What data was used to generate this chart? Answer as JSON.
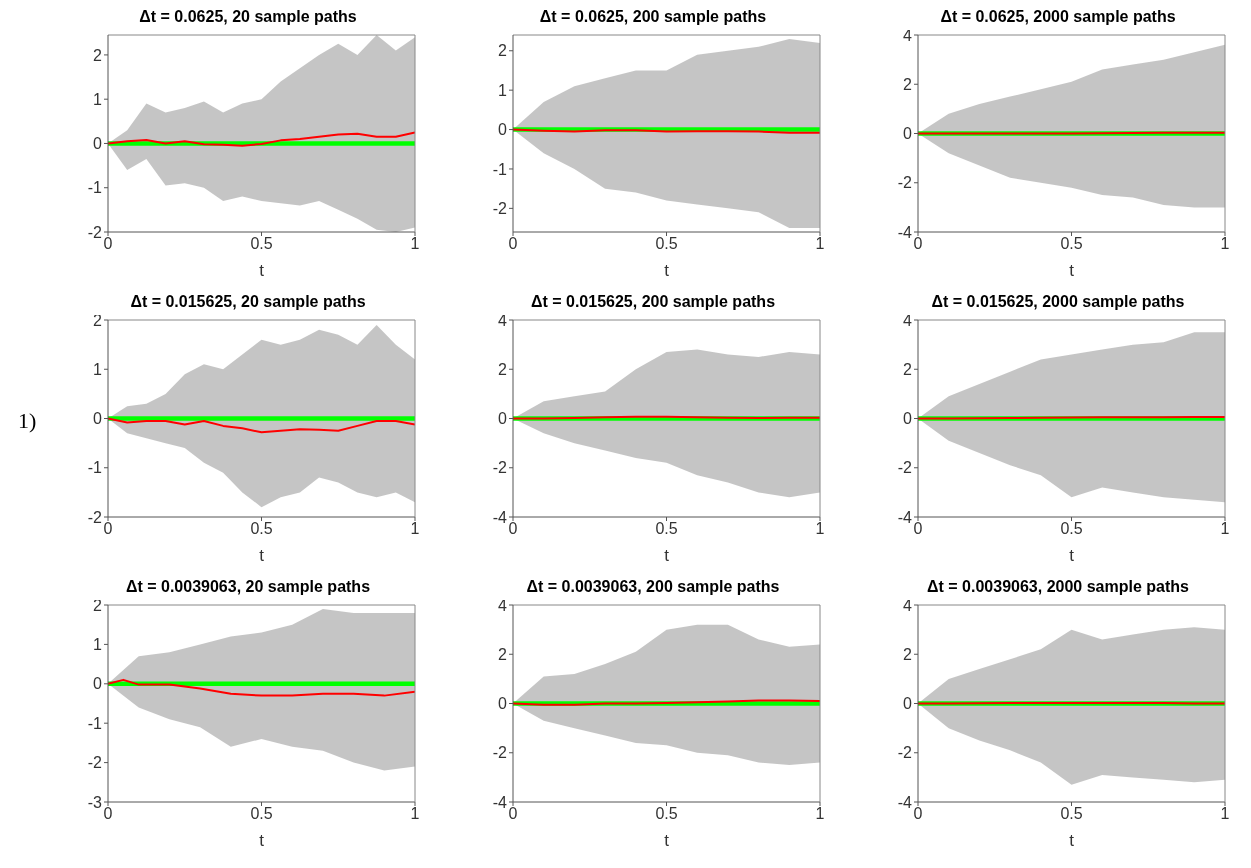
{
  "chart_data": [
    {
      "type": "line",
      "title": "Δt = 0.0625, 20 sample paths",
      "xlabel": "t",
      "xlim": [
        0,
        1
      ],
      "xticks": [
        0,
        0.5,
        1
      ],
      "ylim": [
        -2,
        2.45
      ],
      "yticks": [
        -2,
        -1,
        0,
        1,
        2
      ],
      "series": [
        {
          "color": "#00ff00",
          "x": [
            0,
            0.0625,
            0.125,
            0.1875,
            0.25,
            0.3125,
            0.375,
            0.4375,
            0.5,
            0.5625,
            0.625,
            0.6875,
            0.75,
            0.8125,
            0.875,
            0.9375,
            1
          ],
          "values": [
            0,
            0,
            0,
            0,
            0,
            0,
            0,
            0,
            0,
            0,
            0,
            0,
            0,
            0,
            0,
            0,
            0
          ],
          "lower": [
            0,
            -0.6,
            -0.35,
            -0.95,
            -0.9,
            -1.0,
            -1.3,
            -1.2,
            -1.3,
            -1.35,
            -1.4,
            -1.3,
            -1.5,
            -1.7,
            -1.95,
            -2.0,
            -1.9
          ],
          "upper": [
            0,
            0.3,
            0.9,
            0.7,
            0.8,
            0.95,
            0.7,
            0.9,
            1.0,
            1.4,
            1.7,
            2.0,
            2.25,
            2.0,
            2.45,
            2.1,
            2.4
          ]
        },
        {
          "color": "#ff0000",
          "x": [
            0,
            0.0625,
            0.125,
            0.1875,
            0.25,
            0.3125,
            0.375,
            0.4375,
            0.5,
            0.5625,
            0.625,
            0.6875,
            0.75,
            0.8125,
            0.875,
            0.9375,
            1
          ],
          "values": [
            0,
            0.05,
            0.08,
            0.0,
            0.05,
            -0.02,
            -0.03,
            -0.05,
            -0.01,
            0.07,
            0.1,
            0.15,
            0.2,
            0.22,
            0.15,
            0.15,
            0.25
          ]
        }
      ]
    },
    {
      "type": "line",
      "title": "Δt = 0.0625, 200 sample paths",
      "xlabel": "t",
      "xlim": [
        0,
        1
      ],
      "xticks": [
        0,
        0.5,
        1
      ],
      "ylim": [
        -2.6,
        2.4
      ],
      "yticks": [
        -2,
        -1,
        0,
        1,
        2
      ],
      "series": [
        {
          "color": "#00ff00",
          "x": [
            0,
            0.1,
            0.2,
            0.3,
            0.4,
            0.5,
            0.6,
            0.7,
            0.8,
            0.9,
            1
          ],
          "values": [
            0,
            0,
            0,
            0,
            0,
            0,
            0,
            0,
            0,
            0,
            0
          ],
          "lower": [
            0,
            -0.6,
            -1.0,
            -1.5,
            -1.6,
            -1.8,
            -1.9,
            -2.0,
            -2.1,
            -2.5,
            -2.5
          ],
          "upper": [
            0,
            0.7,
            1.1,
            1.3,
            1.5,
            1.5,
            1.9,
            2.0,
            2.1,
            2.3,
            2.2
          ]
        },
        {
          "color": "#ff0000",
          "x": [
            0,
            0.1,
            0.2,
            0.3,
            0.4,
            0.5,
            0.6,
            0.7,
            0.8,
            0.9,
            1
          ],
          "values": [
            0,
            -0.03,
            -0.05,
            -0.02,
            -0.02,
            -0.05,
            -0.04,
            -0.04,
            -0.05,
            -0.08,
            -0.08
          ]
        }
      ]
    },
    {
      "type": "line",
      "title": "Δt = 0.0625, 2000 sample paths",
      "xlabel": "t",
      "xlim": [
        0,
        1
      ],
      "xticks": [
        0,
        0.5,
        1
      ],
      "ylim": [
        -4,
        4
      ],
      "yticks": [
        -4,
        -2,
        0,
        2,
        4
      ],
      "series": [
        {
          "color": "#00ff00",
          "x": [
            0,
            0.1,
            0.2,
            0.3,
            0.4,
            0.5,
            0.6,
            0.7,
            0.8,
            0.9,
            1
          ],
          "values": [
            0,
            0,
            0,
            0,
            0,
            0,
            0,
            0,
            0,
            0,
            0
          ],
          "lower": [
            0,
            -0.8,
            -1.3,
            -1.8,
            -2.0,
            -2.2,
            -2.5,
            -2.6,
            -2.9,
            -3.0,
            -3.0
          ],
          "upper": [
            0,
            0.8,
            1.2,
            1.5,
            1.8,
            2.1,
            2.6,
            2.8,
            3.0,
            3.3,
            3.6
          ]
        },
        {
          "color": "#ff0000",
          "x": [
            0,
            0.1,
            0.2,
            0.3,
            0.4,
            0.5,
            0.6,
            0.7,
            0.8,
            0.9,
            1
          ],
          "values": [
            0,
            0,
            0,
            0,
            0,
            0,
            0.01,
            0.02,
            0.03,
            0.03,
            0.03
          ]
        }
      ]
    },
    {
      "type": "line",
      "title": "Δt = 0.015625, 20 sample paths",
      "xlabel": "t",
      "xlim": [
        0,
        1
      ],
      "xticks": [
        0,
        0.5,
        1
      ],
      "ylim": [
        -2,
        2
      ],
      "yticks": [
        -2,
        -1,
        0,
        1,
        2
      ],
      "annotations": [
        "1)"
      ],
      "series": [
        {
          "color": "#00ff00",
          "x": [
            0,
            0.0625,
            0.125,
            0.1875,
            0.25,
            0.3125,
            0.375,
            0.4375,
            0.5,
            0.5625,
            0.625,
            0.6875,
            0.75,
            0.8125,
            0.875,
            0.9375,
            1
          ],
          "values": [
            0,
            0,
            0,
            0,
            0,
            0,
            0,
            0,
            0,
            0,
            0,
            0,
            0,
            0,
            0,
            0,
            0
          ],
          "lower": [
            0,
            -0.3,
            -0.4,
            -0.5,
            -0.6,
            -0.9,
            -1.1,
            -1.5,
            -1.8,
            -1.6,
            -1.5,
            -1.2,
            -1.3,
            -1.5,
            -1.6,
            -1.5,
            -1.7
          ],
          "upper": [
            0,
            0.25,
            0.3,
            0.5,
            0.9,
            1.1,
            1.0,
            1.3,
            1.6,
            1.5,
            1.6,
            1.8,
            1.7,
            1.5,
            1.9,
            1.5,
            1.2
          ]
        },
        {
          "color": "#ff0000",
          "x": [
            0,
            0.0625,
            0.125,
            0.1875,
            0.25,
            0.3125,
            0.375,
            0.4375,
            0.5,
            0.5625,
            0.625,
            0.6875,
            0.75,
            0.8125,
            0.875,
            0.9375,
            1
          ],
          "values": [
            0,
            -0.08,
            -0.05,
            -0.05,
            -0.12,
            -0.05,
            -0.15,
            -0.2,
            -0.28,
            -0.25,
            -0.22,
            -0.23,
            -0.25,
            -0.15,
            -0.05,
            -0.05,
            -0.12
          ]
        }
      ]
    },
    {
      "type": "line",
      "title": "Δt = 0.015625, 200 sample paths",
      "xlabel": "t",
      "xlim": [
        0,
        1
      ],
      "xticks": [
        0,
        0.5,
        1
      ],
      "ylim": [
        -4,
        4
      ],
      "yticks": [
        -4,
        -2,
        0,
        2,
        4
      ],
      "series": [
        {
          "color": "#00ff00",
          "x": [
            0,
            0.1,
            0.2,
            0.3,
            0.4,
            0.5,
            0.6,
            0.7,
            0.8,
            0.9,
            1
          ],
          "values": [
            0,
            0,
            0,
            0,
            0,
            0,
            0,
            0,
            0,
            0,
            0
          ],
          "lower": [
            0,
            -0.6,
            -1.0,
            -1.3,
            -1.6,
            -1.8,
            -2.3,
            -2.6,
            -3.0,
            -3.2,
            -3.0
          ],
          "upper": [
            0,
            0.7,
            0.9,
            1.1,
            2.0,
            2.7,
            2.8,
            2.6,
            2.5,
            2.7,
            2.6
          ]
        },
        {
          "color": "#ff0000",
          "x": [
            0,
            0.1,
            0.2,
            0.3,
            0.4,
            0.5,
            0.6,
            0.7,
            0.8,
            0.9,
            1
          ],
          "values": [
            0,
            0,
            0.02,
            0.05,
            0.07,
            0.07,
            0.05,
            0.03,
            0.02,
            0.03,
            0.03
          ]
        }
      ]
    },
    {
      "type": "line",
      "title": "Δt = 0.015625, 2000 sample paths",
      "xlabel": "t",
      "xlim": [
        0,
        1
      ],
      "xticks": [
        0,
        0.5,
        1
      ],
      "ylim": [
        -4,
        4
      ],
      "yticks": [
        -4,
        -2,
        0,
        2,
        4
      ],
      "series": [
        {
          "color": "#00ff00",
          "x": [
            0,
            0.1,
            0.2,
            0.3,
            0.4,
            0.5,
            0.6,
            0.7,
            0.8,
            0.9,
            1
          ],
          "values": [
            0,
            0,
            0,
            0,
            0,
            0,
            0,
            0,
            0,
            0,
            0
          ],
          "lower": [
            0,
            -0.9,
            -1.4,
            -1.9,
            -2.3,
            -3.2,
            -2.8,
            -3.0,
            -3.2,
            -3.3,
            -3.4
          ],
          "upper": [
            0,
            0.9,
            1.4,
            1.9,
            2.4,
            2.6,
            2.8,
            3.0,
            3.1,
            3.5,
            3.5
          ]
        },
        {
          "color": "#ff0000",
          "x": [
            0,
            0.1,
            0.2,
            0.3,
            0.4,
            0.5,
            0.6,
            0.7,
            0.8,
            0.9,
            1
          ],
          "values": [
            0,
            0,
            0.01,
            0.02,
            0.03,
            0.04,
            0.05,
            0.05,
            0.05,
            0.06,
            0.06
          ]
        }
      ]
    },
    {
      "type": "line",
      "title": "Δt = 0.0039063, 20 sample paths",
      "xlabel": "t",
      "xlim": [
        0,
        1
      ],
      "xticks": [
        0,
        0.5,
        1
      ],
      "ylim": [
        -3,
        2
      ],
      "yticks": [
        -3,
        -2,
        -1,
        0,
        1,
        2
      ],
      "series": [
        {
          "color": "#00ff00",
          "x": [
            0,
            0.1,
            0.2,
            0.3,
            0.4,
            0.5,
            0.6,
            0.7,
            0.8,
            0.9,
            1
          ],
          "values": [
            0,
            0,
            0,
            0,
            0,
            0,
            0,
            0,
            0,
            0,
            0
          ],
          "lower": [
            0,
            -0.6,
            -0.9,
            -1.1,
            -1.6,
            -1.4,
            -1.6,
            -1.7,
            -2.0,
            -2.2,
            -2.1
          ],
          "upper": [
            0,
            0.7,
            0.8,
            1.0,
            1.2,
            1.3,
            1.5,
            1.9,
            1.8,
            1.8,
            1.8
          ]
        },
        {
          "color": "#ff0000",
          "x": [
            0,
            0.05,
            0.1,
            0.2,
            0.3,
            0.4,
            0.5,
            0.6,
            0.7,
            0.8,
            0.9,
            1
          ],
          "values": [
            0,
            0.1,
            -0.02,
            -0.02,
            -0.12,
            -0.25,
            -0.3,
            -0.3,
            -0.25,
            -0.25,
            -0.3,
            -0.2
          ]
        }
      ]
    },
    {
      "type": "line",
      "title": "Δt = 0.0039063, 200 sample paths",
      "xlabel": "t",
      "xlim": [
        0,
        1
      ],
      "xticks": [
        0,
        0.5,
        1
      ],
      "ylim": [
        -4,
        4
      ],
      "yticks": [
        -4,
        -2,
        0,
        2,
        4
      ],
      "series": [
        {
          "color": "#00ff00",
          "x": [
            0,
            0.1,
            0.2,
            0.3,
            0.4,
            0.5,
            0.6,
            0.7,
            0.8,
            0.9,
            1
          ],
          "values": [
            0,
            0,
            0,
            0,
            0,
            0,
            0,
            0,
            0,
            0,
            0
          ],
          "lower": [
            0,
            -0.7,
            -1.0,
            -1.3,
            -1.6,
            -1.7,
            -2.0,
            -2.1,
            -2.4,
            -2.5,
            -2.4
          ],
          "upper": [
            0,
            1.1,
            1.2,
            1.6,
            2.1,
            3.0,
            3.2,
            3.2,
            2.6,
            2.3,
            2.4
          ]
        },
        {
          "color": "#ff0000",
          "x": [
            0,
            0.1,
            0.2,
            0.3,
            0.4,
            0.5,
            0.6,
            0.7,
            0.8,
            0.9,
            1
          ],
          "values": [
            0,
            -0.05,
            -0.05,
            0,
            0,
            0.02,
            0.05,
            0.08,
            0.12,
            0.12,
            0.1
          ]
        }
      ]
    },
    {
      "type": "line",
      "title": "Δt = 0.0039063, 2000 sample paths",
      "xlabel": "t",
      "xlim": [
        0,
        1
      ],
      "xticks": [
        0,
        0.5,
        1
      ],
      "ylim": [
        -4,
        4
      ],
      "yticks": [
        -4,
        -2,
        0,
        2,
        4
      ],
      "series": [
        {
          "color": "#00ff00",
          "x": [
            0,
            0.1,
            0.2,
            0.3,
            0.4,
            0.5,
            0.6,
            0.7,
            0.8,
            0.9,
            1
          ],
          "values": [
            0,
            0,
            0,
            0,
            0,
            0,
            0,
            0,
            0,
            0,
            0
          ],
          "lower": [
            0,
            -1.0,
            -1.5,
            -1.9,
            -2.4,
            -3.3,
            -2.9,
            -3.0,
            -3.1,
            -3.2,
            -3.1
          ],
          "upper": [
            0,
            1.0,
            1.4,
            1.8,
            2.2,
            3.0,
            2.6,
            2.8,
            3.0,
            3.1,
            3.0
          ]
        },
        {
          "color": "#ff0000",
          "x": [
            0,
            0.1,
            0.2,
            0.3,
            0.4,
            0.5,
            0.6,
            0.7,
            0.8,
            0.9,
            1
          ],
          "values": [
            0,
            0,
            0.01,
            0.02,
            0.02,
            0.02,
            0.02,
            0.02,
            0.02,
            0,
            0
          ]
        }
      ]
    }
  ]
}
